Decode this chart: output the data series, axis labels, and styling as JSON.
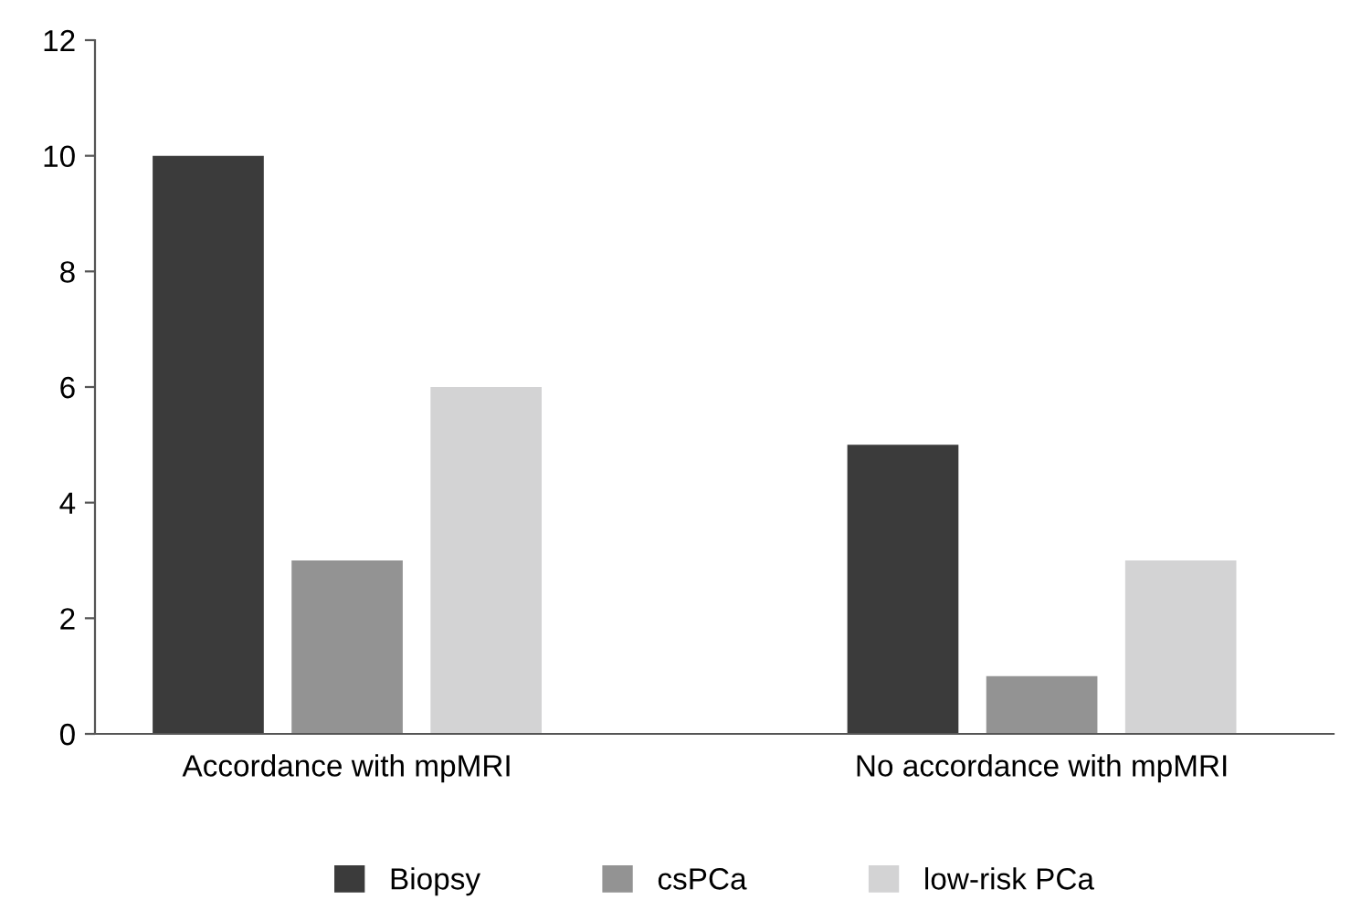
{
  "chart_data": {
    "type": "bar",
    "categories": [
      "Accordance with mpMRI",
      "No accordance with mpMRI"
    ],
    "series": [
      {
        "name": "Biopsy",
        "color": "#3b3b3b",
        "values": [
          10,
          5
        ]
      },
      {
        "name": "csPCa",
        "color": "#939393",
        "values": [
          3,
          1
        ]
      },
      {
        "name": "low-risk PCa",
        "color": "#d3d3d4",
        "values": [
          6,
          3
        ]
      }
    ],
    "ylim": [
      0,
      12
    ],
    "yticks": [
      0,
      2,
      4,
      6,
      8,
      10,
      12
    ],
    "grid": false,
    "legend": "bottom"
  }
}
